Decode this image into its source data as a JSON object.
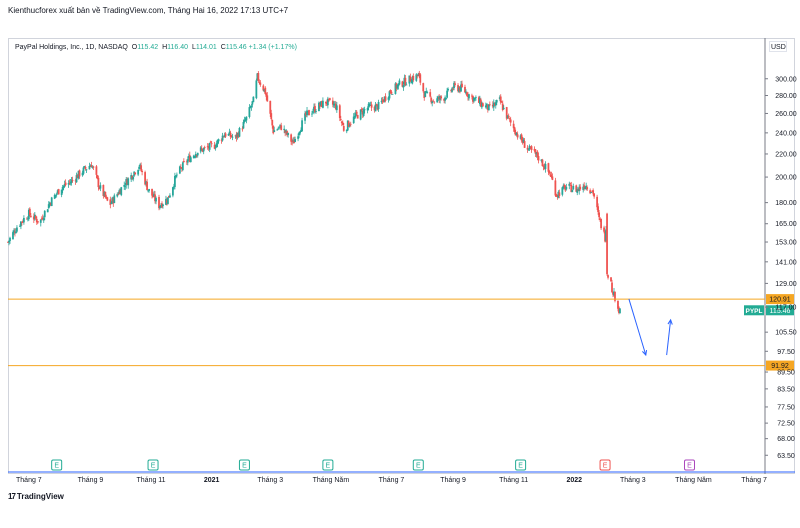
{
  "header": {
    "publish_line": "Kienthucforex xuất bản về TradingView.com, Tháng Hai 16, 2022 17:13 UTC+7"
  },
  "legend": {
    "symbol": "PayPal Holdings, Inc., 1D, NASDAQ",
    "open_label": "O",
    "open": "115.42",
    "high_label": "H",
    "high": "116.40",
    "low_label": "L",
    "low": "114.01",
    "close_label": "C",
    "close": "115.46",
    "change": "+1.34 (+1.17%)"
  },
  "currency": "USD",
  "logo": {
    "mark": "17",
    "text": "TradingView"
  },
  "colors": {
    "up": "#26a69a",
    "down": "#ef5350",
    "level": "#f5a623",
    "arrow": "#2962ff",
    "earnings": "#22ab94",
    "earnings_future": "#ef5350",
    "dividend": "#ab47bc"
  },
  "chart_data": {
    "type": "candlestick",
    "symbol": "PYPL",
    "title": "PayPal Holdings, Inc., 1D, NASDAQ",
    "price_scale": "log",
    "y_ticks": [
      "300.00",
      "280.00",
      "260.00",
      "240.00",
      "220.00",
      "200.00",
      "180.00",
      "165.00",
      "153.00",
      "141.00",
      "129.00",
      "117.00",
      "105.50",
      "97.50",
      "89.50",
      "83.50",
      "77.50",
      "72.50",
      "68.00",
      "63.50"
    ],
    "y_tick_values": [
      300,
      280,
      260,
      240,
      220,
      200,
      180,
      165,
      153,
      141,
      129,
      117,
      105.5,
      97.5,
      89.5,
      83.5,
      77.5,
      72.5,
      68,
      63.5
    ],
    "x_ticks": [
      "Tháng 7",
      "Tháng 9",
      "Tháng 11",
      "2021",
      "Tháng 3",
      "Tháng Năm",
      "Tháng 7",
      "Tháng 9",
      "Tháng 11",
      "2022",
      "Tháng 3",
      "Tháng Năm",
      "Tháng 7"
    ],
    "x_tick_dates": [
      "2020-07-01",
      "2020-09-01",
      "2020-11-01",
      "2021-01-01",
      "2021-03-01",
      "2021-05-01",
      "2021-07-01",
      "2021-09-01",
      "2021-11-01",
      "2022-01-01",
      "2022-03-01",
      "2022-05-01",
      "2022-07-01"
    ],
    "x_range": [
      "2020-06-10",
      "2022-07-12"
    ],
    "y_range": [
      61,
      335
    ],
    "close_path": [
      [
        "2020-06-10",
        153
      ],
      [
        "2020-06-20",
        164
      ],
      [
        "2020-07-01",
        172
      ],
      [
        "2020-07-12",
        166
      ],
      [
        "2020-07-22",
        180
      ],
      [
        "2020-08-03",
        192
      ],
      [
        "2020-08-12",
        196
      ],
      [
        "2020-08-24",
        205
      ],
      [
        "2020-09-02",
        211
      ],
      [
        "2020-09-10",
        192
      ],
      [
        "2020-09-20",
        178
      ],
      [
        "2020-10-02",
        191
      ],
      [
        "2020-10-12",
        201
      ],
      [
        "2020-10-20",
        210
      ],
      [
        "2020-10-29",
        190
      ],
      [
        "2020-11-09",
        178
      ],
      [
        "2020-11-18",
        183
      ],
      [
        "2020-11-27",
        202
      ],
      [
        "2020-12-07",
        214
      ],
      [
        "2020-12-17",
        222
      ],
      [
        "2021-01-04",
        228
      ],
      [
        "2021-01-14",
        239
      ],
      [
        "2021-01-25",
        235
      ],
      [
        "2021-02-04",
        252
      ],
      [
        "2021-02-12",
        274
      ],
      [
        "2021-02-16",
        302
      ],
      [
        "2021-02-24",
        284
      ],
      [
        "2021-03-04",
        242
      ],
      [
        "2021-03-12",
        246
      ],
      [
        "2021-03-24",
        230
      ],
      [
        "2021-04-06",
        258
      ],
      [
        "2021-04-16",
        266
      ],
      [
        "2021-04-26",
        273
      ],
      [
        "2021-05-06",
        268
      ],
      [
        "2021-05-14",
        244
      ],
      [
        "2021-05-26",
        257
      ],
      [
        "2021-06-07",
        266
      ],
      [
        "2021-06-18",
        268
      ],
      [
        "2021-06-29",
        284
      ],
      [
        "2021-07-09",
        293
      ],
      [
        "2021-07-22",
        301
      ],
      [
        "2021-07-28",
        304
      ],
      [
        "2021-08-03",
        282
      ],
      [
        "2021-08-13",
        274
      ],
      [
        "2021-08-23",
        278
      ],
      [
        "2021-09-02",
        290
      ],
      [
        "2021-09-10",
        288
      ],
      [
        "2021-09-20",
        278
      ],
      [
        "2021-09-30",
        270
      ],
      [
        "2021-10-08",
        265
      ],
      [
        "2021-10-18",
        274
      ],
      [
        "2021-10-26",
        255
      ],
      [
        "2021-11-05",
        238
      ],
      [
        "2021-11-15",
        225
      ],
      [
        "2021-11-25",
        218
      ],
      [
        "2021-12-03",
        208
      ],
      [
        "2021-12-08",
        202
      ],
      [
        "2021-12-14",
        186
      ],
      [
        "2021-12-24",
        192
      ],
      [
        "2022-01-04",
        190
      ],
      [
        "2022-01-12",
        194
      ],
      [
        "2022-01-20",
        188
      ],
      [
        "2022-01-26",
        168
      ],
      [
        "2022-02-01",
        156
      ],
      [
        "2022-02-03",
        172
      ],
      [
        "2022-02-04",
        134
      ],
      [
        "2022-02-08",
        126
      ],
      [
        "2022-02-14",
        116
      ],
      [
        "2022-02-16",
        115.46
      ]
    ],
    "last_price": 115.46,
    "levels": [
      120.91,
      91.92
    ],
    "projection_arrows": [
      [
        [
          "2022-02-25",
          121
        ],
        [
          "2022-03-14",
          96
        ]
      ],
      [
        [
          "2022-04-04",
          96
        ],
        [
          "2022-04-08",
          111
        ]
      ]
    ],
    "event_markers": [
      "E",
      "E",
      "E",
      "E",
      "E",
      "E",
      "E",
      "E"
    ],
    "event_dates": [
      "2020-07-29",
      "2020-11-03",
      "2021-02-03",
      "2021-04-28",
      "2021-07-28",
      "2021-11-08",
      "2022-02-01",
      "2022-04-27"
    ]
  }
}
